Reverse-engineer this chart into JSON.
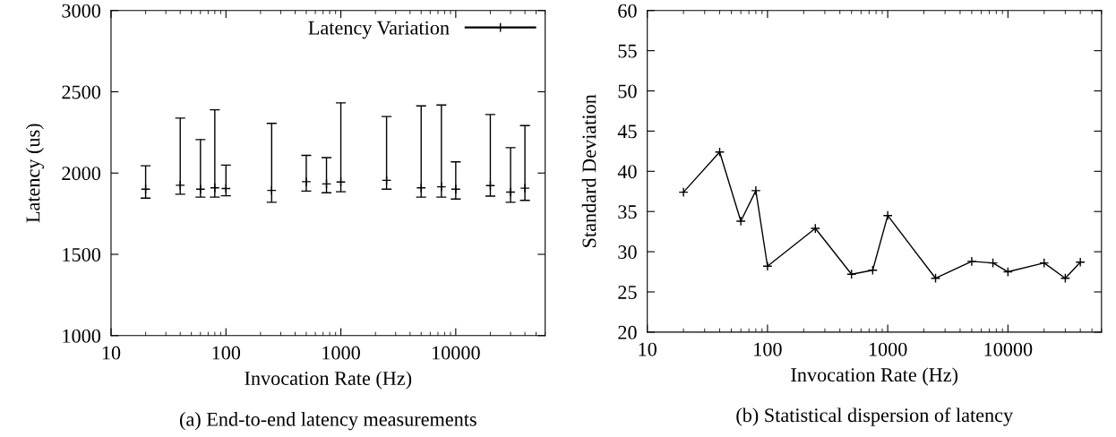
{
  "chart_data": [
    {
      "type": "scatter",
      "xlabel": "Invocation Rate (Hz)",
      "ylabel": "Latency (us)",
      "log": "x",
      "x": [
        20,
        40,
        60,
        80,
        100,
        250,
        500,
        750,
        1000,
        2500,
        5000,
        7500,
        10000,
        20000,
        30000,
        40000
      ],
      "series": [
        {
          "name": "Latency Variation",
          "color": "#000000",
          "values": [
            1901,
            1925,
            1901,
            1909,
            1905,
            1893,
            1947,
            1933,
            1945,
            1955,
            1909,
            1915,
            1901,
            1923,
            1883,
            1907
          ],
          "errors": [
            [
              1846,
              2045
            ],
            [
              1870,
              2338
            ],
            [
              1852,
              2206
            ],
            [
              1852,
              2389
            ],
            [
              1860,
              2049
            ],
            [
              1820,
              2306
            ],
            [
              1889,
              2109
            ],
            [
              1879,
              2095
            ],
            [
              1885,
              2432
            ],
            [
              1901,
              2348
            ],
            [
              1852,
              2413
            ],
            [
              1852,
              2419
            ],
            [
              1840,
              2069
            ],
            [
              1858,
              2360
            ],
            [
              1820,
              2156
            ],
            [
              1832,
              2292
            ]
          ]
        }
      ],
      "xlim": [
        10,
        60000
      ],
      "xticks": [
        10,
        100,
        1000,
        10000
      ],
      "ylim": [
        1000,
        3000
      ],
      "yticks": [
        1000,
        1500,
        2000,
        2500,
        3000
      ],
      "marker": "cross",
      "grid": false,
      "legend": "top right",
      "annotations": [
        "(a) End-to-end latency measurements"
      ]
    },
    {
      "type": "line",
      "xlabel": "Invocation Rate (Hz)",
      "ylabel": "Standard Deviation",
      "log": "x",
      "x": [
        20,
        40,
        60,
        80,
        100,
        250,
        500,
        750,
        1000,
        2500,
        5000,
        7500,
        10000,
        20000,
        30000,
        40000
      ],
      "series": [
        {
          "color": "#000000",
          "values": [
            37.4,
            42.4,
            33.8,
            37.6,
            28.2,
            32.9,
            27.2,
            27.7,
            34.5,
            26.7,
            28.8,
            28.6,
            27.5,
            28.6,
            26.7,
            28.7
          ]
        }
      ],
      "xlim": [
        10,
        60000
      ],
      "xticks": [
        10,
        100,
        1000,
        10000
      ],
      "ylim": [
        20,
        60
      ],
      "yticks": [
        20,
        25,
        30,
        35,
        40,
        45,
        50,
        55,
        60
      ],
      "marker": "cross",
      "line_style": "solid",
      "grid": false,
      "legend": false,
      "annotations": [
        "(b) Statistical dispersion of latency"
      ]
    }
  ]
}
